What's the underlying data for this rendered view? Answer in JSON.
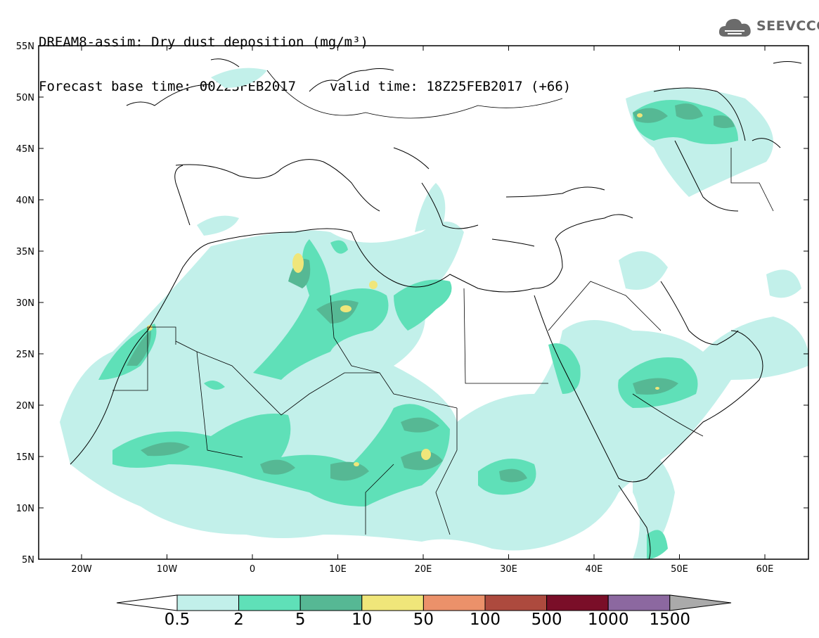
{
  "title": {
    "line1": "DREAM8-assim: Dry dust deposition (mg/m³)",
    "base_time": "Forecast base time: 00Z23FEB2017",
    "valid_time": "valid time: 18Z25FEB2017 (+66)"
  },
  "logo": {
    "text": "SEEVCCC",
    "icon": "cloud-icon"
  },
  "axes": {
    "lon_ticks": [
      "20W",
      "10W",
      "0",
      "10E",
      "20E",
      "30E",
      "40E",
      "50E",
      "60E"
    ],
    "lat_ticks": [
      "55N",
      "50N",
      "45N",
      "40N",
      "35N",
      "30N",
      "25N",
      "20N",
      "15N",
      "10N",
      "5N"
    ]
  },
  "colorbar": {
    "labels": [
      "0.5",
      "2",
      "5",
      "10",
      "50",
      "100",
      "500",
      "1000",
      "1500"
    ],
    "colors": [
      "#c2f0ea",
      "#5fe0b8",
      "#56b894",
      "#f0e67a",
      "#eb916a",
      "#ad4a3e",
      "#7a0e28",
      "#8c68a0",
      "#aaaaaa"
    ]
  }
}
